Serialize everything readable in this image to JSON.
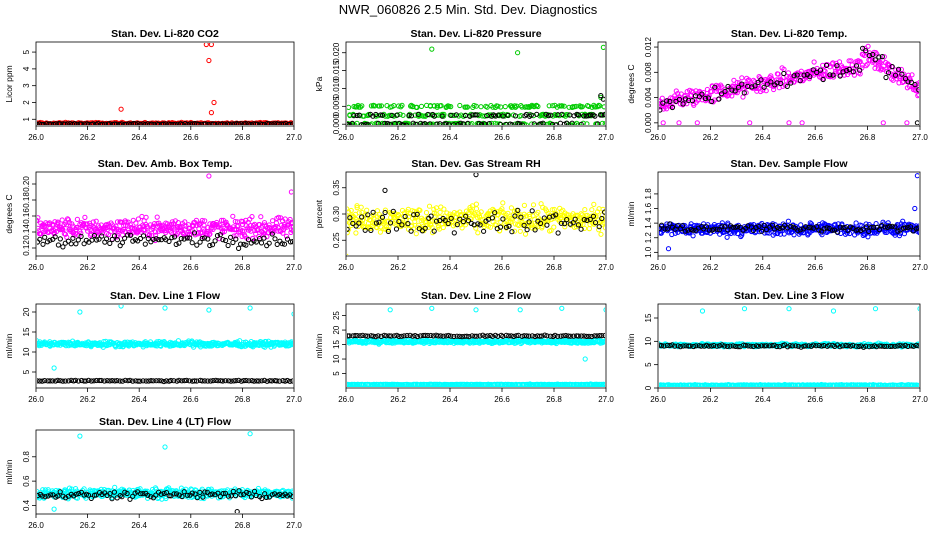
{
  "page": {
    "title": "NWR_060826  2.5 Min. Std. Dev. Diagnostics"
  },
  "colors": {
    "red": "#ff0000",
    "green": "#00cc00",
    "magenta": "#ff00ff",
    "yellow": "#ffff00",
    "blue": "#0000ff",
    "cyan": "#00ffff",
    "black": "#000000"
  },
  "chart_data": [
    {
      "id": "co2",
      "type": "scatter",
      "title": "Stan. Dev. Li-820 CO2",
      "ylabel": "Licor ppm",
      "xlim": [
        26.0,
        27.0
      ],
      "ylim": [
        0.6,
        5.6
      ],
      "xticks": [
        "26.0",
        "26.2",
        "26.4",
        "26.6",
        "26.8",
        "27.0"
      ],
      "yticks": [
        1,
        2,
        3,
        4,
        5
      ],
      "series": [
        {
          "color": "#ff0000",
          "base": 0.75,
          "spread": 0.15,
          "n": 260,
          "outliers": [
            [
              26.66,
              5.45
            ],
            [
              26.68,
              5.45
            ],
            [
              26.67,
              4.5
            ],
            [
              26.69,
              2.0
            ],
            [
              26.33,
              1.6
            ],
            [
              26.68,
              1.4
            ]
          ]
        },
        {
          "color": "#000000",
          "base": 0.72,
          "spread": 0.08,
          "n": 110,
          "outliers": []
        }
      ]
    },
    {
      "id": "pressure",
      "type": "scatter",
      "title": "Stan. Dev. Li-820 Pressure",
      "ylabel": "kPa",
      "xlim": [
        26.0,
        27.0
      ],
      "ylim": [
        -0.0005,
        0.023
      ],
      "xticks": [
        "26.0",
        "26.2",
        "26.4",
        "26.6",
        "26.8",
        "27.0"
      ],
      "yticks": [
        0.0,
        0.005,
        0.01,
        0.015,
        0.02
      ],
      "series": [
        {
          "color": "#00cc00",
          "levels": [
            0.0,
            0.0025,
            0.005
          ],
          "n": 330,
          "outliers": [
            [
              26.33,
              0.021
            ],
            [
              26.66,
              0.02
            ],
            [
              26.99,
              0.0215
            ],
            [
              26.98,
              0.0075
            ]
          ]
        },
        {
          "color": "#000000",
          "levels": [
            0.0,
            0.0025
          ],
          "n": 110,
          "outliers": [
            [
              26.98,
              0.008
            ],
            [
              26.99,
              0.007
            ]
          ]
        }
      ]
    },
    {
      "id": "temp",
      "type": "scatter",
      "title": "Stan. Dev. Li-820 Temp.",
      "ylabel": "degrees C",
      "xlim": [
        26.0,
        27.0
      ],
      "ylim": [
        -0.0005,
        0.0128
      ],
      "xticks": [
        "26.0",
        "26.2",
        "26.4",
        "26.6",
        "26.8",
        "27.0"
      ],
      "yticks": [
        0.0,
        0.004,
        0.008,
        0.012
      ],
      "series": [
        {
          "color": "#ff00ff",
          "trend": "temp",
          "n": 360,
          "outliers": [
            [
              26.02,
              0.0
            ],
            [
              26.08,
              0.0
            ],
            [
              26.15,
              0.0
            ],
            [
              26.35,
              0.0
            ],
            [
              26.5,
              0.0
            ],
            [
              26.55,
              0.0
            ],
            [
              26.86,
              0.0
            ],
            [
              26.95,
              0.0
            ]
          ]
        },
        {
          "color": "#000000",
          "trend": "temp",
          "n": 80,
          "outliers": [
            [
              26.99,
              0.0
            ]
          ]
        }
      ]
    },
    {
      "id": "ambbox",
      "type": "scatter",
      "title": "Stan. Dev. Amb. Box Temp.",
      "ylabel": "degrees C",
      "xlim": [
        26.0,
        27.0
      ],
      "ylim": [
        0.11,
        0.215
      ],
      "xticks": [
        "26.0",
        "26.2",
        "26.4",
        "26.6",
        "26.8",
        "27.0"
      ],
      "yticks": [
        0.12,
        0.14,
        0.16,
        0.18,
        0.2
      ],
      "series": [
        {
          "color": "#ff00ff",
          "base": 0.145,
          "spread": 0.03,
          "n": 420,
          "outliers": [
            [
              26.67,
              0.21
            ],
            [
              26.99,
              0.19
            ]
          ]
        },
        {
          "color": "#000000",
          "base": 0.13,
          "spread": 0.02,
          "n": 100,
          "outliers": []
        }
      ]
    },
    {
      "id": "rh",
      "type": "scatter",
      "title": "Stan. Dev. Gas Stream RH",
      "ylabel": "percent",
      "xlim": [
        26.0,
        27.0
      ],
      "ylim": [
        0.22,
        0.38
      ],
      "xticks": [
        "26.0",
        "26.2",
        "26.4",
        "26.6",
        "26.8",
        "27.0"
      ],
      "yticks": [
        0.25,
        0.3,
        0.35
      ],
      "series": [
        {
          "color": "#ffff00",
          "base": 0.29,
          "spread": 0.06,
          "n": 420,
          "outliers": [
            [
              26.0,
              0.22
            ]
          ]
        },
        {
          "color": "#000000",
          "base": 0.285,
          "spread": 0.05,
          "n": 90,
          "outliers": [
            [
              26.5,
              0.375
            ],
            [
              26.15,
              0.345
            ]
          ]
        }
      ]
    },
    {
      "id": "sample",
      "type": "scatter",
      "title": "Stan. Dev. Sample Flow",
      "ylabel": "ml/min",
      "xlim": [
        26.0,
        27.0
      ],
      "ylim": [
        0.95,
        2.1
      ],
      "xticks": [
        "26.0",
        "26.2",
        "26.4",
        "26.6",
        "26.8",
        "27.0"
      ],
      "yticks": [
        1.0,
        1.2,
        1.4,
        1.6,
        1.8
      ],
      "series": [
        {
          "color": "#0000ff",
          "base": 1.32,
          "spread": 0.22,
          "n": 420,
          "outliers": [
            [
              26.99,
              2.05
            ],
            [
              26.98,
              1.6
            ],
            [
              26.04,
              1.05
            ]
          ]
        },
        {
          "color": "#000000",
          "base": 1.33,
          "spread": 0.12,
          "n": 100,
          "outliers": []
        }
      ]
    },
    {
      "id": "line1",
      "type": "scatter",
      "title": "Stan. Dev. Line 1 Flow",
      "ylabel": "ml/min",
      "xlim": [
        26.0,
        27.0
      ],
      "ylim": [
        1,
        22
      ],
      "xticks": [
        "26.0",
        "26.2",
        "26.4",
        "26.6",
        "26.8",
        "27.0"
      ],
      "yticks": [
        5,
        10,
        15,
        20
      ],
      "series": [
        {
          "color": "#00ffff",
          "base": 12,
          "spread": 1.6,
          "n": 420,
          "outliers": [
            [
              26.17,
              20
            ],
            [
              26.33,
              21.5
            ],
            [
              26.5,
              21
            ],
            [
              26.67,
              20.5
            ],
            [
              26.83,
              21
            ],
            [
              27.0,
              19.5
            ],
            [
              26.07,
              6
            ]
          ]
        },
        {
          "color": "#000000",
          "base": 2.8,
          "spread": 0.3,
          "n": 100,
          "outliers": []
        }
      ]
    },
    {
      "id": "line2",
      "type": "scatter",
      "title": "Stan. Dev. Line 2 Flow",
      "ylabel": "ml/min",
      "xlim": [
        26.0,
        27.0
      ],
      "ylim": [
        0,
        29
      ],
      "xticks": [
        "26.0",
        "26.2",
        "26.4",
        "26.6",
        "26.8",
        "27.0"
      ],
      "yticks": [
        5,
        10,
        15,
        20,
        25
      ],
      "series": [
        {
          "color": "#00ffff",
          "base": 16,
          "spread": 1.5,
          "n": 400,
          "outliers": [
            [
              26.17,
              27
            ],
            [
              26.33,
              27.5
            ],
            [
              26.5,
              27
            ],
            [
              26.67,
              27
            ],
            [
              26.83,
              27.5
            ],
            [
              27.0,
              27
            ]
          ]
        },
        {
          "color": "#00ffff",
          "base": 1.2,
          "spread": 0.3,
          "n": 260,
          "outliers": [
            [
              26.92,
              10
            ]
          ]
        },
        {
          "color": "#000000",
          "base": 18,
          "spread": 0.6,
          "n": 100,
          "outliers": []
        }
      ]
    },
    {
      "id": "line3",
      "type": "scatter",
      "title": "Stan. Dev. Line 3 Flow",
      "ylabel": "ml/min",
      "xlim": [
        26.0,
        27.0
      ],
      "ylim": [
        0,
        18
      ],
      "xticks": [
        "26.0",
        "26.2",
        "26.4",
        "26.6",
        "26.8",
        "27.0"
      ],
      "yticks": [
        0,
        5,
        10,
        15
      ],
      "series": [
        {
          "color": "#00ffff",
          "base": 9.2,
          "spread": 0.8,
          "n": 380,
          "outliers": [
            [
              26.17,
              16.5
            ],
            [
              26.33,
              17
            ],
            [
              26.5,
              17
            ],
            [
              26.67,
              16.5
            ],
            [
              26.83,
              17
            ],
            [
              27.0,
              17
            ]
          ]
        },
        {
          "color": "#00ffff",
          "base": 0.6,
          "spread": 0.3,
          "n": 260,
          "outliers": []
        },
        {
          "color": "#000000",
          "base": 9.0,
          "spread": 0.5,
          "n": 100,
          "outliers": []
        }
      ]
    },
    {
      "id": "line4",
      "type": "scatter",
      "title": "Stan. Dev. Line 4 (LT) Flow",
      "ylabel": "ml/min",
      "xlim": [
        26.0,
        27.0
      ],
      "ylim": [
        0.33,
        1.02
      ],
      "xticks": [
        "26.0",
        "26.2",
        "26.4",
        "26.6",
        "26.8",
        "27.0"
      ],
      "yticks": [
        0.4,
        0.6,
        0.8
      ],
      "series": [
        {
          "color": "#00ffff",
          "base": 0.5,
          "spread": 0.1,
          "n": 420,
          "outliers": [
            [
              26.17,
              0.97
            ],
            [
              26.5,
              0.88
            ],
            [
              26.83,
              0.99
            ],
            [
              26.07,
              0.37
            ]
          ]
        },
        {
          "color": "#000000",
          "base": 0.49,
          "spread": 0.07,
          "n": 100,
          "outliers": [
            [
              26.78,
              0.35
            ]
          ]
        }
      ]
    }
  ]
}
